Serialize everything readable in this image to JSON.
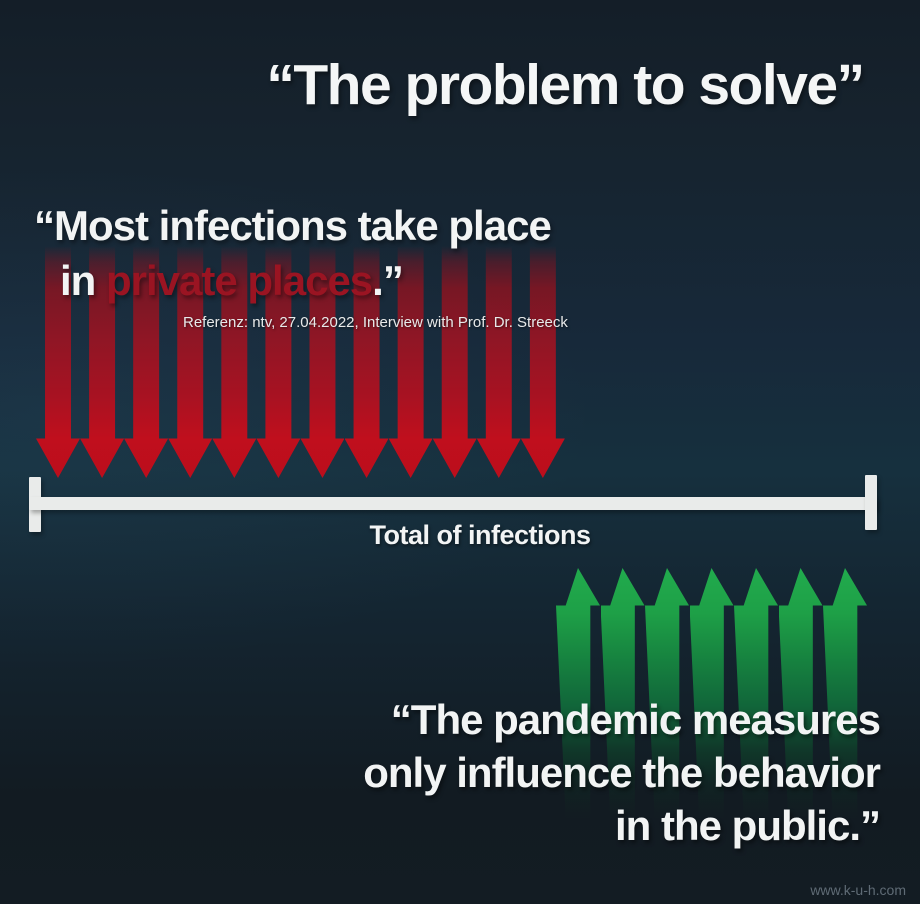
{
  "title": "“The problem to solve”",
  "quote_private": {
    "line1": "“Most infections take place",
    "line2_prefix": "in ",
    "line2_highlight": "private places",
    "line2_suffix": ".”"
  },
  "reference": "Referenz: ntv, 27.04.2022, Interview with Prof. Dr. Streeck",
  "axis_label": "Total of infections",
  "quote_public": {
    "line1": "“The pandemic measures",
    "line2": "only influence the behavior",
    "line3": "in the public.”"
  },
  "watermark": "www.k-u-h.com",
  "red_arrows": {
    "count": 12,
    "direction": "down",
    "color": "#c00f1d"
  },
  "green_arrows": {
    "count": 7,
    "direction": "up",
    "color": "#1fa94c"
  },
  "colors": {
    "highlight_red_text": "#9a1422",
    "bar": "#e9ebea",
    "background_top": "#16222d",
    "background_mid": "#16303e",
    "background_bottom": "#121b22"
  }
}
